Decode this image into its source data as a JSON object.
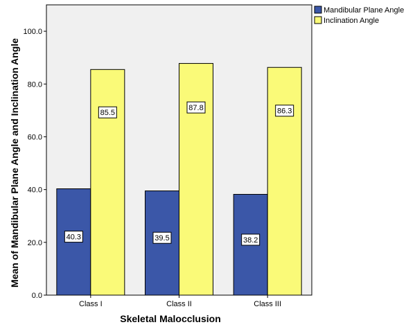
{
  "chart_data": {
    "type": "bar",
    "categories": [
      "Class I",
      "Class II",
      "Class III"
    ],
    "series": [
      {
        "name": "Mandibular Plane Angle",
        "values": [
          40.3,
          39.5,
          38.2
        ],
        "color": "#3b57a8"
      },
      {
        "name": "Inclination Angle",
        "values": [
          85.5,
          87.8,
          86.3
        ],
        "color": "#fafa78"
      }
    ],
    "data_labels": [
      [
        "40.3",
        "39.5",
        "38.2"
      ],
      [
        "85.5",
        "87.8",
        "86.3"
      ]
    ],
    "title": "",
    "xlabel": "Skeletal Malocclusion",
    "ylabel": "Mean of Mandibular Plane Angle and Inclination Angle",
    "ylim": [
      0,
      110
    ],
    "yticks": [
      0,
      20,
      40,
      60,
      80,
      100
    ],
    "ytick_labels": [
      "0.0",
      "20.0",
      "40.0",
      "60.0",
      "80.0",
      "100.0"
    ],
    "grid": false,
    "legend_position": "top-right",
    "plot_background": "#f0f0f0"
  }
}
